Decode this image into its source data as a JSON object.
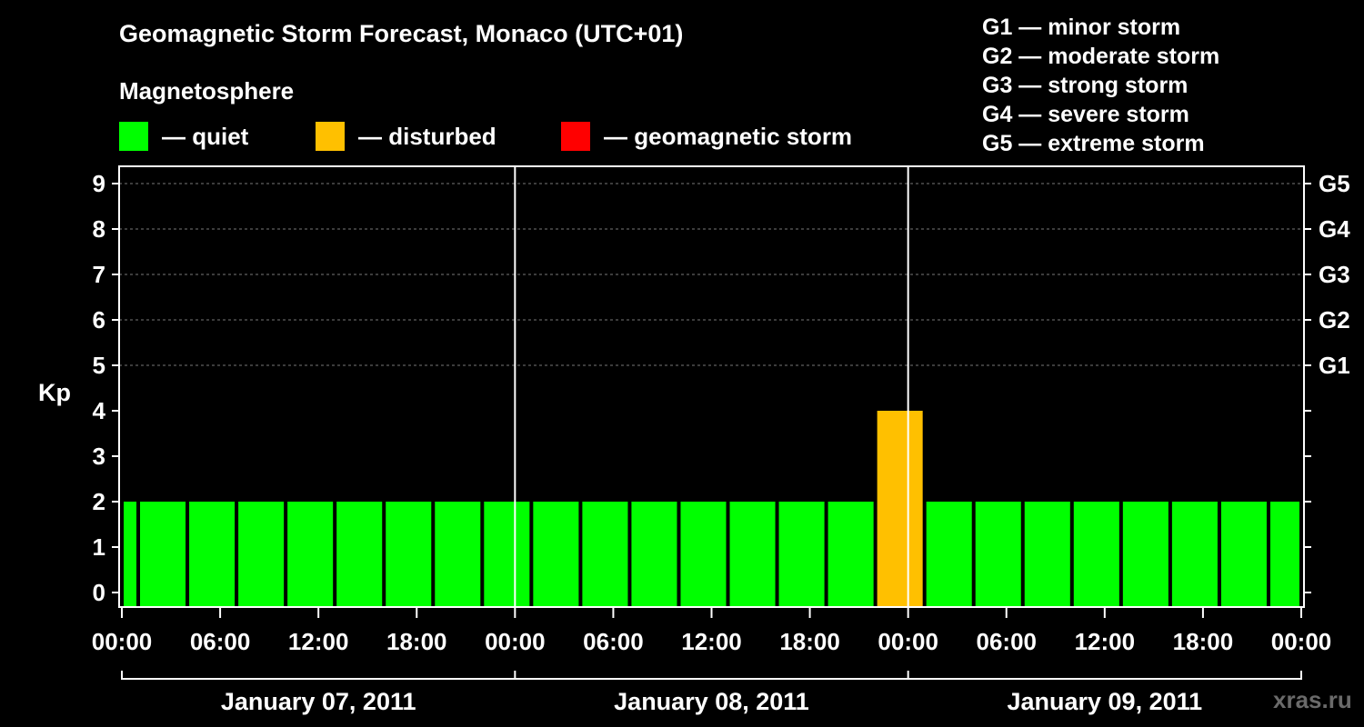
{
  "title": "Geomagnetic Storm Forecast, Monaco (UTC+01)",
  "magnetosphere_label": "Magnetosphere",
  "legend": [
    {
      "label": "— quiet",
      "color": "#00ff00"
    },
    {
      "label": "— disturbed",
      "color": "#ffc000"
    },
    {
      "label": "— geomagnetic storm",
      "color": "#ff0000"
    }
  ],
  "storm_levels": [
    "G1 — minor storm",
    "G2 — moderate storm",
    "G3 — strong storm",
    "G4 — severe storm",
    "G5 — extreme storm"
  ],
  "watermark": "xras.ru",
  "chart_data": {
    "type": "bar",
    "ylabel": "Kp",
    "ylim": [
      0,
      9
    ],
    "yticks": [
      0,
      1,
      2,
      3,
      4,
      5,
      6,
      7,
      8,
      9
    ],
    "right_ticks": [
      {
        "kp": 5,
        "label": "G1"
      },
      {
        "kp": 6,
        "label": "G2"
      },
      {
        "kp": 7,
        "label": "G3"
      },
      {
        "kp": 8,
        "label": "G4"
      },
      {
        "kp": 9,
        "label": "G5"
      }
    ],
    "x_hours_range": [
      0,
      72
    ],
    "xtick_labels": [
      "00:00",
      "06:00",
      "12:00",
      "18:00",
      "00:00",
      "06:00",
      "12:00",
      "18:00",
      "00:00",
      "06:00",
      "12:00",
      "18:00",
      "00:00"
    ],
    "days": [
      "January 07, 2011",
      "January 08, 2011",
      "January 09, 2011"
    ],
    "grid": "dashed horizontal at Kp 5–9",
    "bars": [
      {
        "start": 0,
        "end": 1,
        "kp": 2,
        "status": "quiet"
      },
      {
        "start": 1,
        "end": 4,
        "kp": 2,
        "status": "quiet"
      },
      {
        "start": 4,
        "end": 7,
        "kp": 2,
        "status": "quiet"
      },
      {
        "start": 7,
        "end": 10,
        "kp": 2,
        "status": "quiet"
      },
      {
        "start": 10,
        "end": 13,
        "kp": 2,
        "status": "quiet"
      },
      {
        "start": 13,
        "end": 16,
        "kp": 2,
        "status": "quiet"
      },
      {
        "start": 16,
        "end": 19,
        "kp": 2,
        "status": "quiet"
      },
      {
        "start": 19,
        "end": 22,
        "kp": 2,
        "status": "quiet"
      },
      {
        "start": 22,
        "end": 25,
        "kp": 2,
        "status": "quiet"
      },
      {
        "start": 25,
        "end": 28,
        "kp": 2,
        "status": "quiet"
      },
      {
        "start": 28,
        "end": 31,
        "kp": 2,
        "status": "quiet"
      },
      {
        "start": 31,
        "end": 34,
        "kp": 2,
        "status": "quiet"
      },
      {
        "start": 34,
        "end": 37,
        "kp": 2,
        "status": "quiet"
      },
      {
        "start": 37,
        "end": 40,
        "kp": 2,
        "status": "quiet"
      },
      {
        "start": 40,
        "end": 43,
        "kp": 2,
        "status": "quiet"
      },
      {
        "start": 43,
        "end": 46,
        "kp": 2,
        "status": "quiet"
      },
      {
        "start": 46,
        "end": 49,
        "kp": 4,
        "status": "disturbed"
      },
      {
        "start": 49,
        "end": 52,
        "kp": 2,
        "status": "quiet"
      },
      {
        "start": 52,
        "end": 55,
        "kp": 2,
        "status": "quiet"
      },
      {
        "start": 55,
        "end": 58,
        "kp": 2,
        "status": "quiet"
      },
      {
        "start": 58,
        "end": 61,
        "kp": 2,
        "status": "quiet"
      },
      {
        "start": 61,
        "end": 64,
        "kp": 2,
        "status": "quiet"
      },
      {
        "start": 64,
        "end": 67,
        "kp": 2,
        "status": "quiet"
      },
      {
        "start": 67,
        "end": 70,
        "kp": 2,
        "status": "quiet"
      },
      {
        "start": 70,
        "end": 72,
        "kp": 2,
        "status": "quiet"
      }
    ]
  }
}
